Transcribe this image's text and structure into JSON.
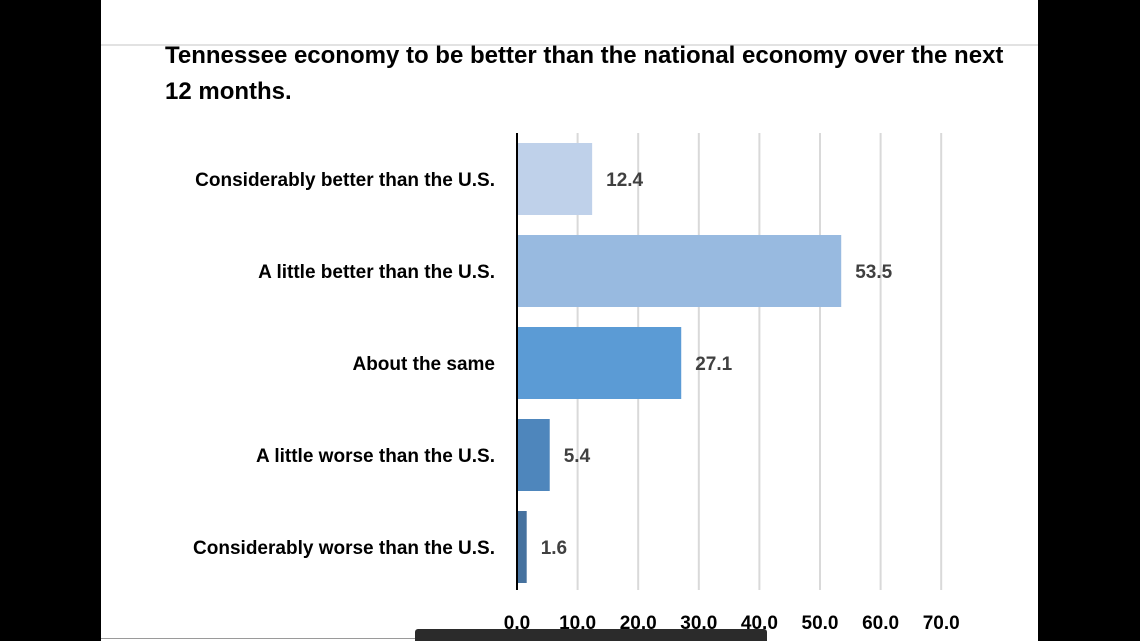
{
  "chart_data": {
    "type": "bar",
    "orientation": "horizontal",
    "title": "Tennessee economy to be better than the national economy over the next 12 months.",
    "categories": [
      "Considerably better than the U.S.",
      "A little better than the U.S.",
      "About the same",
      "A little worse than the U.S.",
      "Considerably worse than the U.S."
    ],
    "values": [
      12.4,
      53.5,
      27.1,
      5.4,
      1.6
    ],
    "value_labels": [
      "12.4",
      "53.5",
      "27.1",
      "5.4",
      "1.6"
    ],
    "bar_colors": [
      "#bfd1ea",
      "#98bae0",
      "#5b9bd5",
      "#4e86bc",
      "#46729f"
    ],
    "xlim": [
      0,
      70
    ],
    "x_ticks": [
      "0.0",
      "10.0",
      "20.0",
      "30.0",
      "40.0",
      "50.0",
      "60.0",
      "70.0"
    ],
    "grid": true,
    "legend": false,
    "xlabel": "",
    "ylabel": ""
  }
}
